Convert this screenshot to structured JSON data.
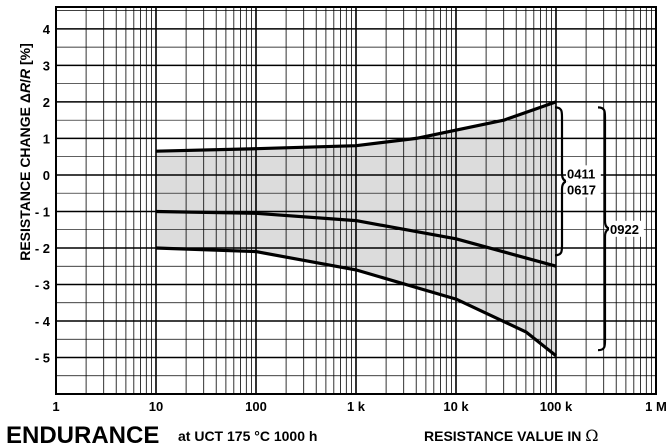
{
  "chart_data": {
    "type": "area",
    "x_scale": "log",
    "xlim": [
      1,
      1000000
    ],
    "ylim": [
      -6,
      4.6
    ],
    "grid": true,
    "ylabel": {
      "main": "RESISTANCE CHANGE ",
      "delta": "Δ",
      "r1": "R",
      "slash": "/",
      "r2": "R",
      "unit": " [%]"
    },
    "x_ticks": [
      {
        "value": 1,
        "label": "1"
      },
      {
        "value": 10,
        "label": "10"
      },
      {
        "value": 100,
        "label": "100"
      },
      {
        "value": 1000,
        "label": "1 k"
      },
      {
        "value": 10000,
        "label": "10 k"
      },
      {
        "value": 100000,
        "label": "100 k"
      },
      {
        "value": 1000000,
        "label": "1 M"
      }
    ],
    "y_ticks": [
      {
        "value": 4,
        "label": "4"
      },
      {
        "value": 3,
        "label": "3"
      },
      {
        "value": 2,
        "label": "2"
      },
      {
        "value": 1,
        "label": "1"
      },
      {
        "value": 0,
        "label": "0"
      },
      {
        "value": -1,
        "label": "- 1"
      },
      {
        "value": -2,
        "label": "- 2"
      },
      {
        "value": -3,
        "label": "- 3"
      },
      {
        "value": -4,
        "label": "- 4"
      },
      {
        "value": -5,
        "label": "- 5"
      }
    ],
    "band": {
      "upper": {
        "x": [
          10,
          100,
          1000,
          4000,
          30000,
          100000
        ],
        "y": [
          0.65,
          0.72,
          0.8,
          1.0,
          1.5,
          2.0
        ]
      },
      "lower": {
        "x": [
          10,
          100,
          1000,
          10000,
          50000,
          100000
        ],
        "y": [
          -2.0,
          -2.1,
          -2.6,
          -3.4,
          -4.3,
          -4.95
        ]
      }
    },
    "series": [
      {
        "x": [
          10,
          100,
          1000,
          4000,
          30000,
          100000
        ],
        "y": [
          0.65,
          0.72,
          0.8,
          1.0,
          1.5,
          2.0
        ]
      },
      {
        "x": [
          10,
          100,
          1000,
          10000,
          100000
        ],
        "y": [
          -1.0,
          -1.05,
          -1.25,
          -1.75,
          -2.5
        ]
      },
      {
        "x": [
          10,
          100,
          1000,
          10000,
          50000,
          100000
        ],
        "y": [
          -2.0,
          -2.1,
          -2.6,
          -3.4,
          -4.3,
          -4.95
        ]
      }
    ],
    "brackets": [
      {
        "labels": [
          "0411",
          "0617"
        ],
        "y_top": 1.85,
        "y_bottom": -2.2
      },
      {
        "labels": [
          "0922"
        ],
        "y_top": 1.85,
        "y_bottom": -4.8
      }
    ],
    "colors": {
      "band_fill": "#dcdcdc",
      "line": "#000000",
      "grid": "#000000"
    }
  },
  "caption": {
    "title": "ENDURANCE",
    "subtitle": "at UCT 175 °C 1000 h",
    "xlabel_text": "RESISTANCE VALUE IN ",
    "xlabel_unit": "Ω"
  }
}
